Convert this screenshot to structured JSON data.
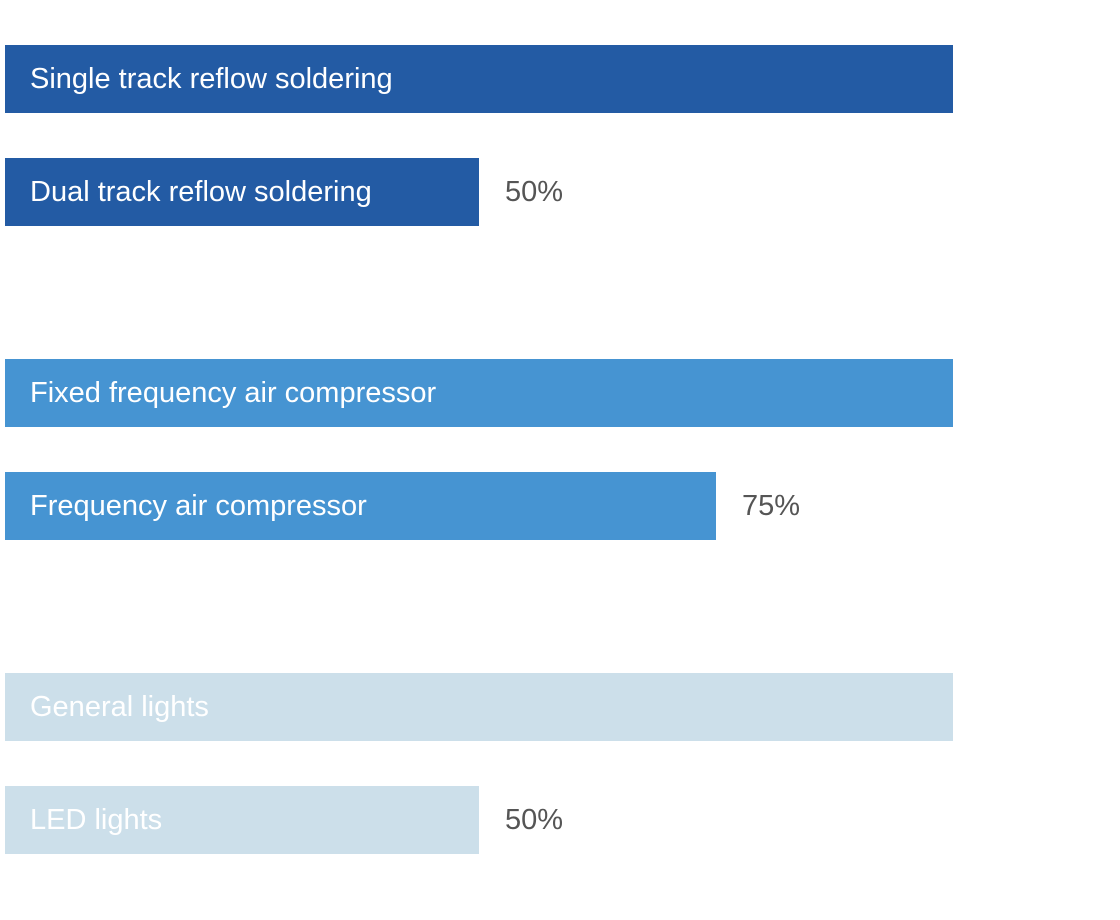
{
  "chart_data": {
    "type": "bar",
    "orientation": "horizontal",
    "groups": [
      {
        "color": "#235BA4",
        "label_color": "#ffffff",
        "bars": [
          {
            "label": "Single track reflow soldering",
            "value": 100,
            "value_label": ""
          },
          {
            "label": "Dual track reflow soldering",
            "value": 50,
            "value_label": "50%"
          }
        ]
      },
      {
        "color": "#4694D2",
        "label_color": "#ffffff",
        "bars": [
          {
            "label": "Fixed frequency air compressor",
            "value": 100,
            "value_label": ""
          },
          {
            "label": "Frequency air compressor",
            "value": 75,
            "value_label": "75%"
          }
        ]
      },
      {
        "color": "#CCDFEA",
        "label_color": "#ffffff",
        "bars": [
          {
            "label": "General lights",
            "value": 100,
            "value_label": ""
          },
          {
            "label": "LED lights",
            "value": 50,
            "value_label": "50%"
          }
        ]
      }
    ],
    "xlim": [
      0,
      100
    ],
    "grid": false,
    "legend": "none"
  }
}
